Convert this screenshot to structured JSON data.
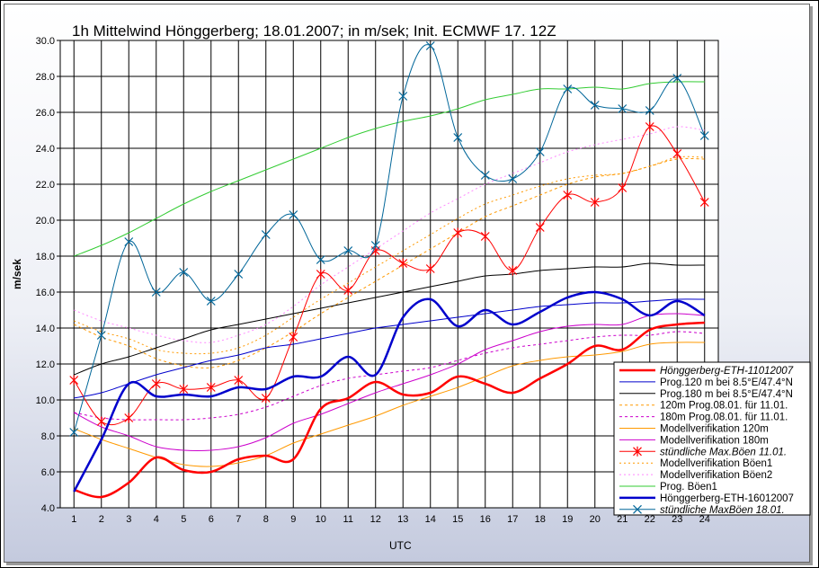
{
  "chart_data": {
    "type": "line",
    "title": "1h Mittelwind Hönggerberg; 18.01.2007; in m/sek; Init. ECMWF 17. 12Z",
    "xlabel": "UTC",
    "ylabel": "m/sek",
    "x": [
      1,
      2,
      3,
      4,
      5,
      6,
      7,
      8,
      9,
      10,
      11,
      12,
      13,
      14,
      15,
      16,
      17,
      18,
      19,
      20,
      21,
      22,
      23,
      24
    ],
    "xlim": [
      0.5,
      24.5
    ],
    "ylim": [
      4.0,
      30.0
    ],
    "ytick_step": 2,
    "grid": true,
    "legend_position": "bottom-right",
    "series": [
      {
        "name": "Hönggerberg-ETH-11012007",
        "color": "#ff0000",
        "width": 2.5,
        "italic": true,
        "values": [
          5.0,
          4.6,
          5.4,
          6.8,
          6.1,
          6.0,
          6.7,
          6.9,
          6.7,
          9.5,
          10.1,
          11.0,
          10.3,
          10.4,
          11.3,
          10.9,
          10.4,
          11.2,
          12.0,
          13.0,
          12.8,
          13.9,
          14.2,
          14.3
        ]
      },
      {
        "name": "Prog.120 m bei 8.5°E/47.4°N",
        "color": "#0000cc",
        "width": 1,
        "values": [
          10.1,
          10.4,
          10.9,
          11.4,
          11.8,
          12.2,
          12.5,
          12.9,
          13.1,
          13.4,
          13.7,
          14.0,
          14.2,
          14.4,
          14.6,
          14.8,
          15.0,
          15.2,
          15.3,
          15.4,
          15.4,
          15.5,
          15.6,
          15.6
        ]
      },
      {
        "name": "Prog.180 m bei 8.5°E/47.4°N",
        "color": "#000000",
        "width": 1,
        "values": [
          11.4,
          12.0,
          12.4,
          12.9,
          13.4,
          13.9,
          14.2,
          14.5,
          14.8,
          15.1,
          15.4,
          15.7,
          16.0,
          16.3,
          16.6,
          16.9,
          17.0,
          17.2,
          17.3,
          17.4,
          17.4,
          17.6,
          17.5,
          17.5
        ]
      },
      {
        "name": "120m Prog.08.01. für 11.01.",
        "color": "#ff9900",
        "width": 1,
        "dash": "3,3",
        "values": [
          14.2,
          13.5,
          13.0,
          12.3,
          11.9,
          11.8,
          12.2,
          12.9,
          13.8,
          14.8,
          15.7,
          16.6,
          17.5,
          18.4,
          19.3,
          20.2,
          20.8,
          21.4,
          22.0,
          22.4,
          22.6,
          23.0,
          23.4,
          23.4
        ]
      },
      {
        "name": "180m Prog.08.01. für 11.01.",
        "color": "#cc00cc",
        "width": 1,
        "dash": "3,3",
        "values": [
          9.3,
          9.0,
          8.9,
          8.9,
          8.9,
          9.0,
          9.2,
          9.6,
          10.2,
          10.8,
          11.2,
          11.4,
          11.6,
          11.8,
          12.2,
          12.6,
          12.9,
          13.1,
          13.3,
          13.5,
          13.6,
          13.6,
          13.8,
          13.7
        ]
      },
      {
        "name": "Modellverifikation 120m",
        "color": "#ff9900",
        "width": 1,
        "values": [
          8.4,
          7.8,
          7.3,
          6.8,
          6.4,
          6.3,
          6.5,
          6.9,
          7.6,
          8.1,
          8.6,
          9.1,
          9.7,
          10.2,
          10.7,
          11.3,
          11.9,
          12.2,
          12.4,
          12.5,
          12.7,
          13.1,
          13.2,
          13.2
        ]
      },
      {
        "name": "Modellverifikation 180m",
        "color": "#cc00cc",
        "width": 1,
        "values": [
          9.3,
          8.5,
          8.0,
          7.4,
          7.2,
          7.2,
          7.4,
          7.9,
          8.7,
          9.2,
          9.8,
          10.4,
          10.9,
          11.4,
          12.0,
          12.8,
          13.3,
          13.8,
          14.1,
          14.2,
          14.2,
          14.7,
          14.8,
          14.7
        ]
      },
      {
        "name": "stündliche Max.Böen 11.01.",
        "color": "#ff0000",
        "width": 1,
        "marker": "star",
        "italic": true,
        "values": [
          11.1,
          8.8,
          9.0,
          10.9,
          10.6,
          10.7,
          11.1,
          10.1,
          13.5,
          17.0,
          16.1,
          18.3,
          17.6,
          17.3,
          19.3,
          19.1,
          17.2,
          19.6,
          21.4,
          21.0,
          21.8,
          25.2,
          23.7,
          21.0
        ]
      },
      {
        "name": "Modellverifikation Böen1",
        "color": "#ff9900",
        "width": 1,
        "dash": "2,3",
        "values": [
          14.4,
          13.8,
          13.4,
          12.8,
          12.6,
          12.6,
          12.9,
          13.6,
          14.6,
          15.6,
          16.5,
          17.4,
          18.3,
          19.2,
          20.1,
          20.9,
          21.4,
          21.9,
          22.3,
          22.5,
          22.6,
          23.0,
          23.5,
          23.5
        ]
      },
      {
        "name": "Modellverifikation Böen2",
        "color": "#ff88ff",
        "width": 1,
        "dash": "2,3",
        "values": [
          15.0,
          14.4,
          14.0,
          13.6,
          13.3,
          13.2,
          13.6,
          14.2,
          15.2,
          16.4,
          17.4,
          18.4,
          19.4,
          20.4,
          21.2,
          22.0,
          22.6,
          23.2,
          23.8,
          24.2,
          24.5,
          24.8,
          25.2,
          25.0
        ]
      },
      {
        "name": "Prog. Böen1",
        "color": "#33cc33",
        "width": 1,
        "values": [
          18.0,
          18.6,
          19.3,
          20.1,
          20.9,
          21.6,
          22.2,
          22.8,
          23.4,
          24.0,
          24.6,
          25.1,
          25.5,
          25.8,
          26.2,
          26.7,
          27.0,
          27.3,
          27.3,
          27.4,
          27.3,
          27.6,
          27.7,
          27.7
        ]
      },
      {
        "name": "Hönggerberg-ETH-16012007",
        "color": "#0000cc",
        "width": 2.5,
        "values": [
          4.9,
          7.8,
          10.9,
          10.2,
          10.3,
          10.2,
          10.7,
          10.6,
          11.3,
          11.3,
          12.4,
          11.4,
          14.6,
          15.6,
          14.1,
          15.0,
          14.2,
          14.9,
          15.7,
          16.0,
          15.6,
          14.7,
          15.5,
          14.7
        ]
      },
      {
        "name": "stündliche MaxBöen 18.01.",
        "color": "#006699",
        "width": 1,
        "marker": "x",
        "italic": true,
        "values": [
          8.2,
          13.6,
          18.8,
          16.0,
          17.1,
          15.5,
          17.0,
          19.2,
          20.3,
          17.8,
          18.3,
          18.6,
          26.9,
          29.7,
          24.6,
          22.5,
          22.3,
          23.8,
          27.3,
          26.4,
          26.2,
          26.1,
          27.9,
          24.7
        ]
      }
    ]
  }
}
